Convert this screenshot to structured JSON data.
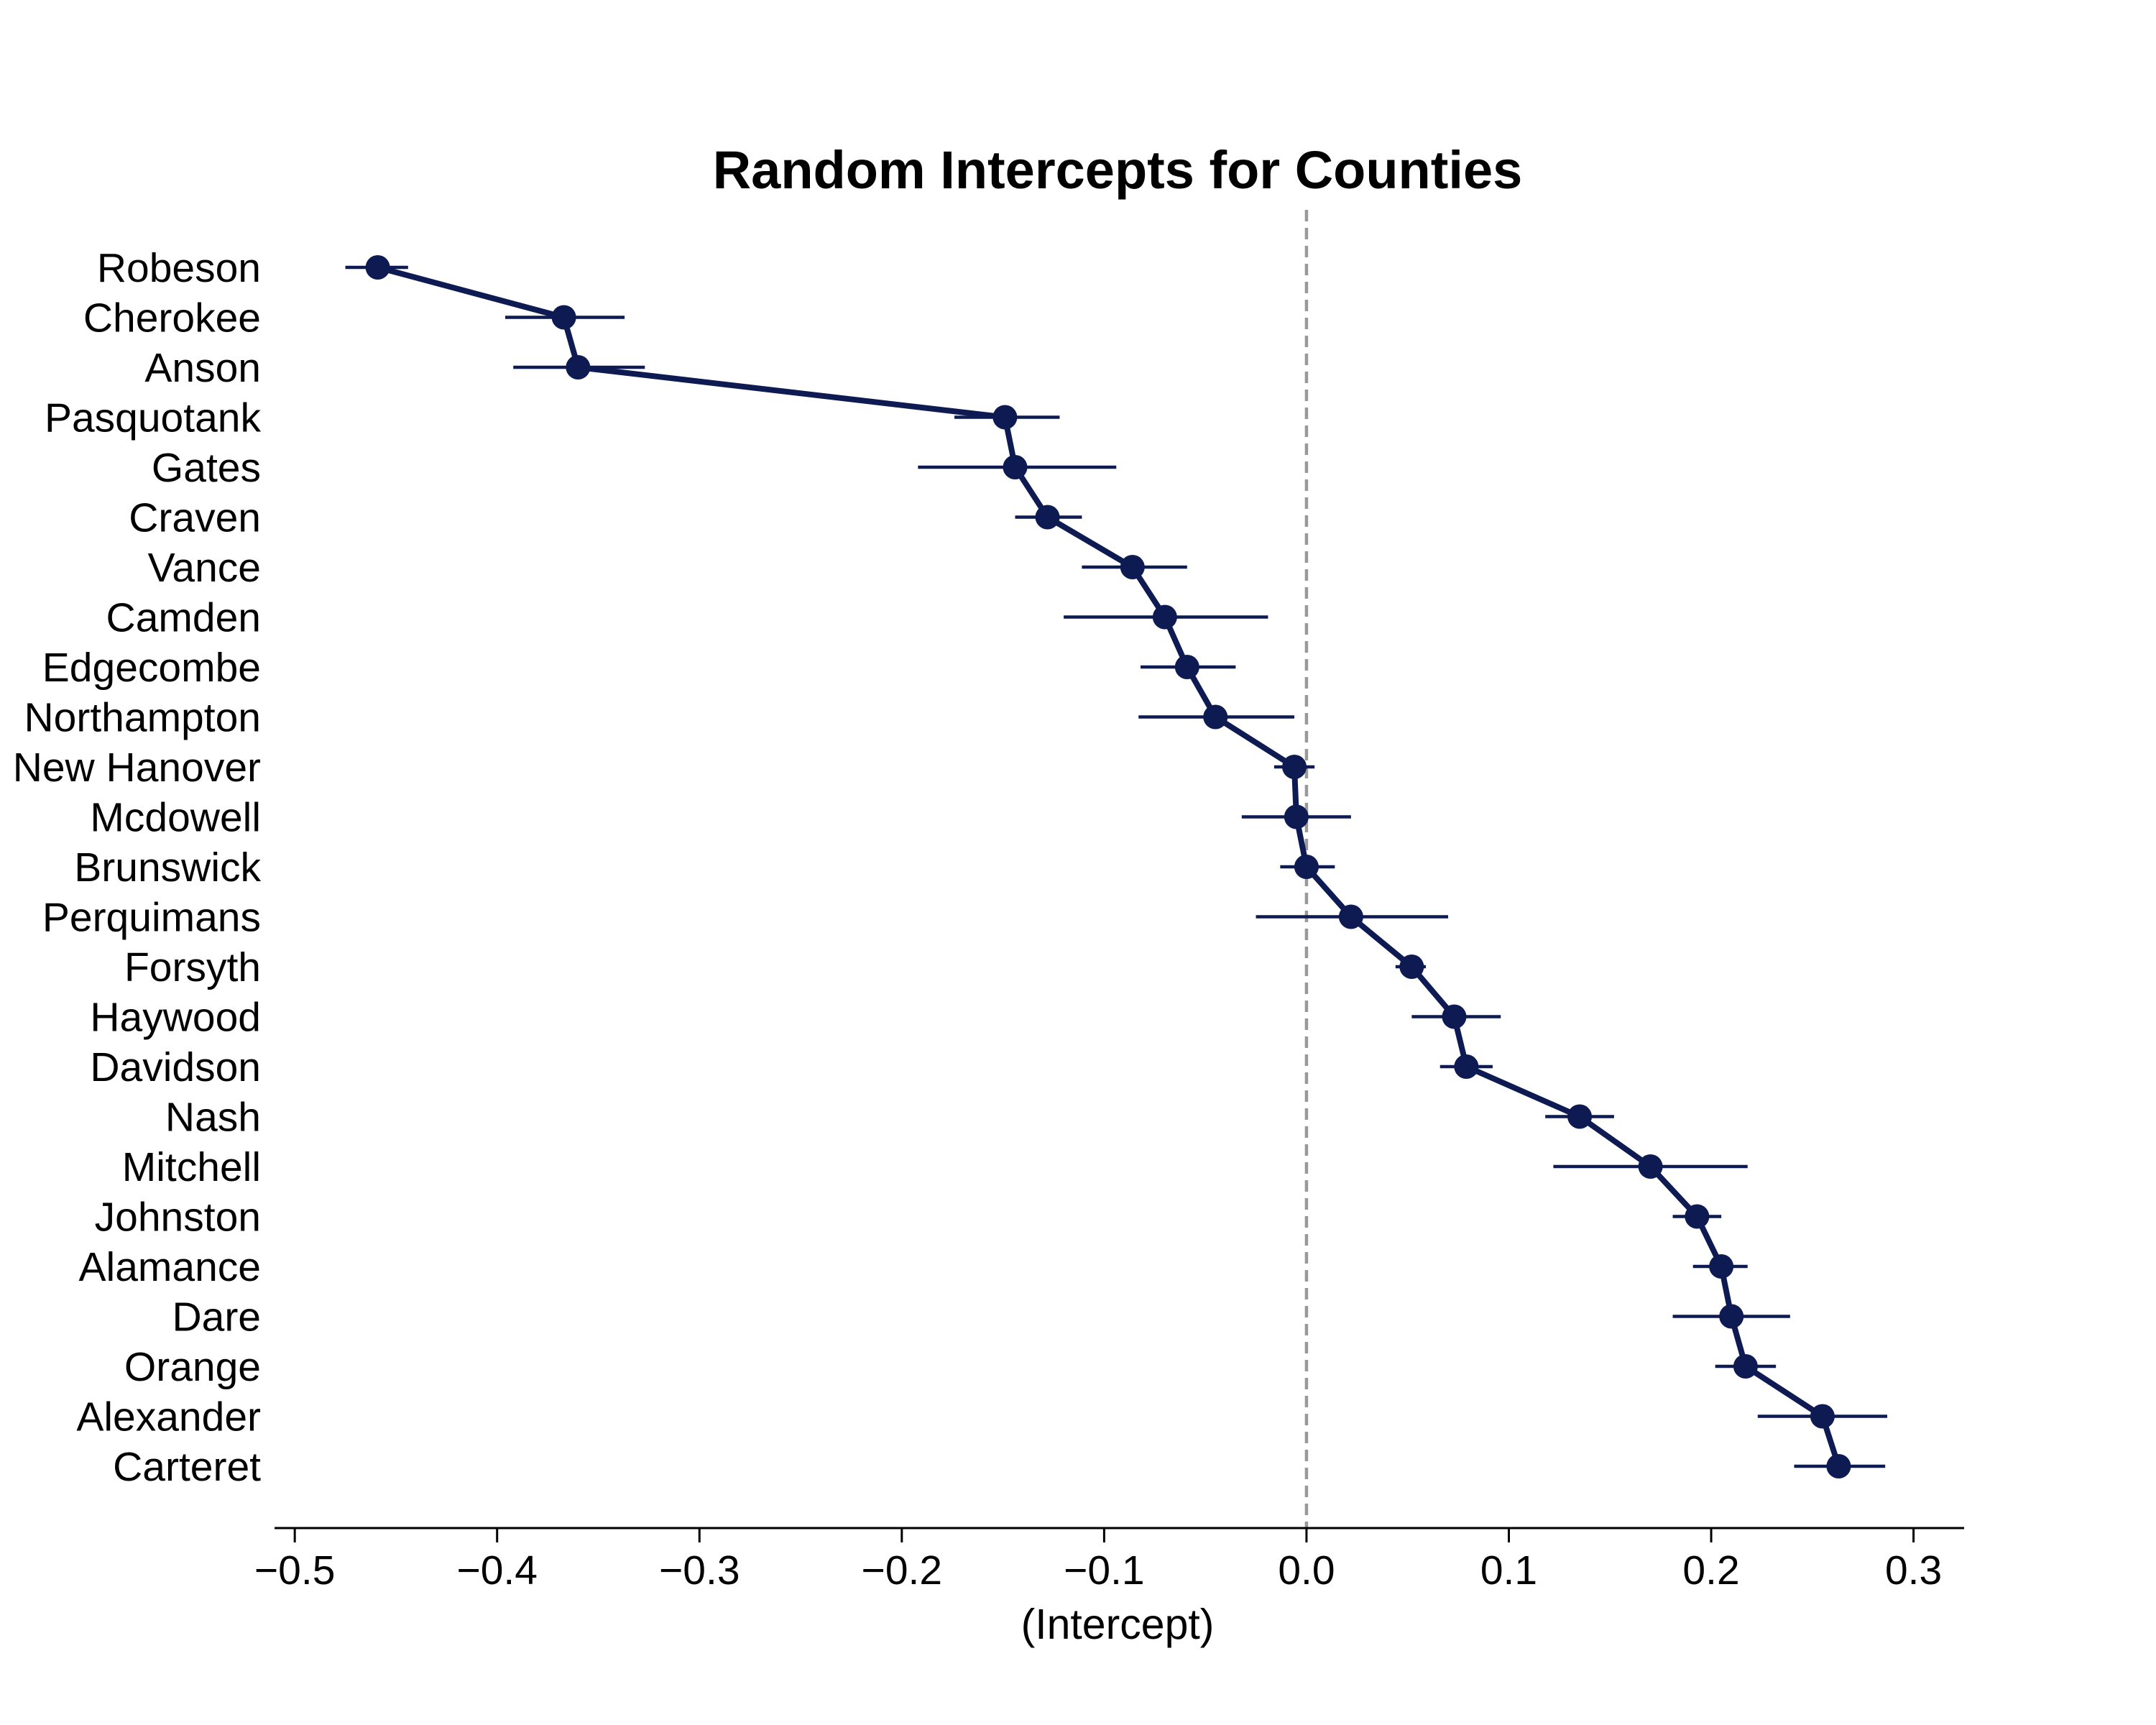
{
  "chart_data": {
    "type": "scatter",
    "title": "Random Intercepts for Counties",
    "xlabel": "(Intercept)",
    "ylabel": "",
    "xlim": [
      -0.51,
      0.325
    ],
    "xticks": [
      -0.5,
      -0.4,
      -0.3,
      -0.2,
      -0.1,
      0.0,
      0.1,
      0.2,
      0.3
    ],
    "xtick_labels": [
      "−0.5",
      "−0.4",
      "−0.3",
      "−0.2",
      "−0.1",
      "0.0",
      "0.1",
      "0.2",
      "0.3"
    ],
    "reference_line": {
      "x": 0.0,
      "style": "dashed",
      "color": "#999999"
    },
    "grid": false,
    "legend": "none",
    "colors": {
      "series": "#0d1b52",
      "reference": "#999999"
    },
    "categories": [
      "Robeson",
      "Cherokee",
      "Anson",
      "Pasquotank",
      "Gates",
      "Craven",
      "Vance",
      "Camden",
      "Edgecombe",
      "Northampton",
      "New Hanover",
      "Mcdowell",
      "Brunswick",
      "Perquimans",
      "Forsyth",
      "Haywood",
      "Davidson",
      "Nash",
      "Mitchell",
      "Johnston",
      "Alamance",
      "Dare",
      "Orange",
      "Alexander",
      "Carteret"
    ],
    "series": [
      {
        "values": [
          -0.459,
          -0.367,
          -0.36,
          -0.149,
          -0.144,
          -0.128,
          -0.086,
          -0.07,
          -0.059,
          -0.045,
          -0.006,
          -0.005,
          0.0,
          0.022,
          0.052,
          0.073,
          0.079,
          0.135,
          0.17,
          0.193,
          0.205,
          0.21,
          0.217,
          0.255,
          0.263
        ],
        "lower": [
          -0.475,
          -0.396,
          -0.392,
          -0.174,
          -0.192,
          -0.144,
          -0.111,
          -0.12,
          -0.082,
          -0.083,
          -0.016,
          -0.032,
          -0.013,
          -0.025,
          0.044,
          0.052,
          0.066,
          0.118,
          0.122,
          0.181,
          0.191,
          0.181,
          0.202,
          0.223,
          0.241
        ],
        "upper": [
          -0.444,
          -0.337,
          -0.327,
          -0.122,
          -0.094,
          -0.111,
          -0.059,
          -0.019,
          -0.035,
          -0.006,
          0.004,
          0.022,
          0.014,
          0.07,
          0.059,
          0.096,
          0.092,
          0.152,
          0.218,
          0.205,
          0.218,
          0.239,
          0.232,
          0.287,
          0.286
        ]
      }
    ]
  }
}
